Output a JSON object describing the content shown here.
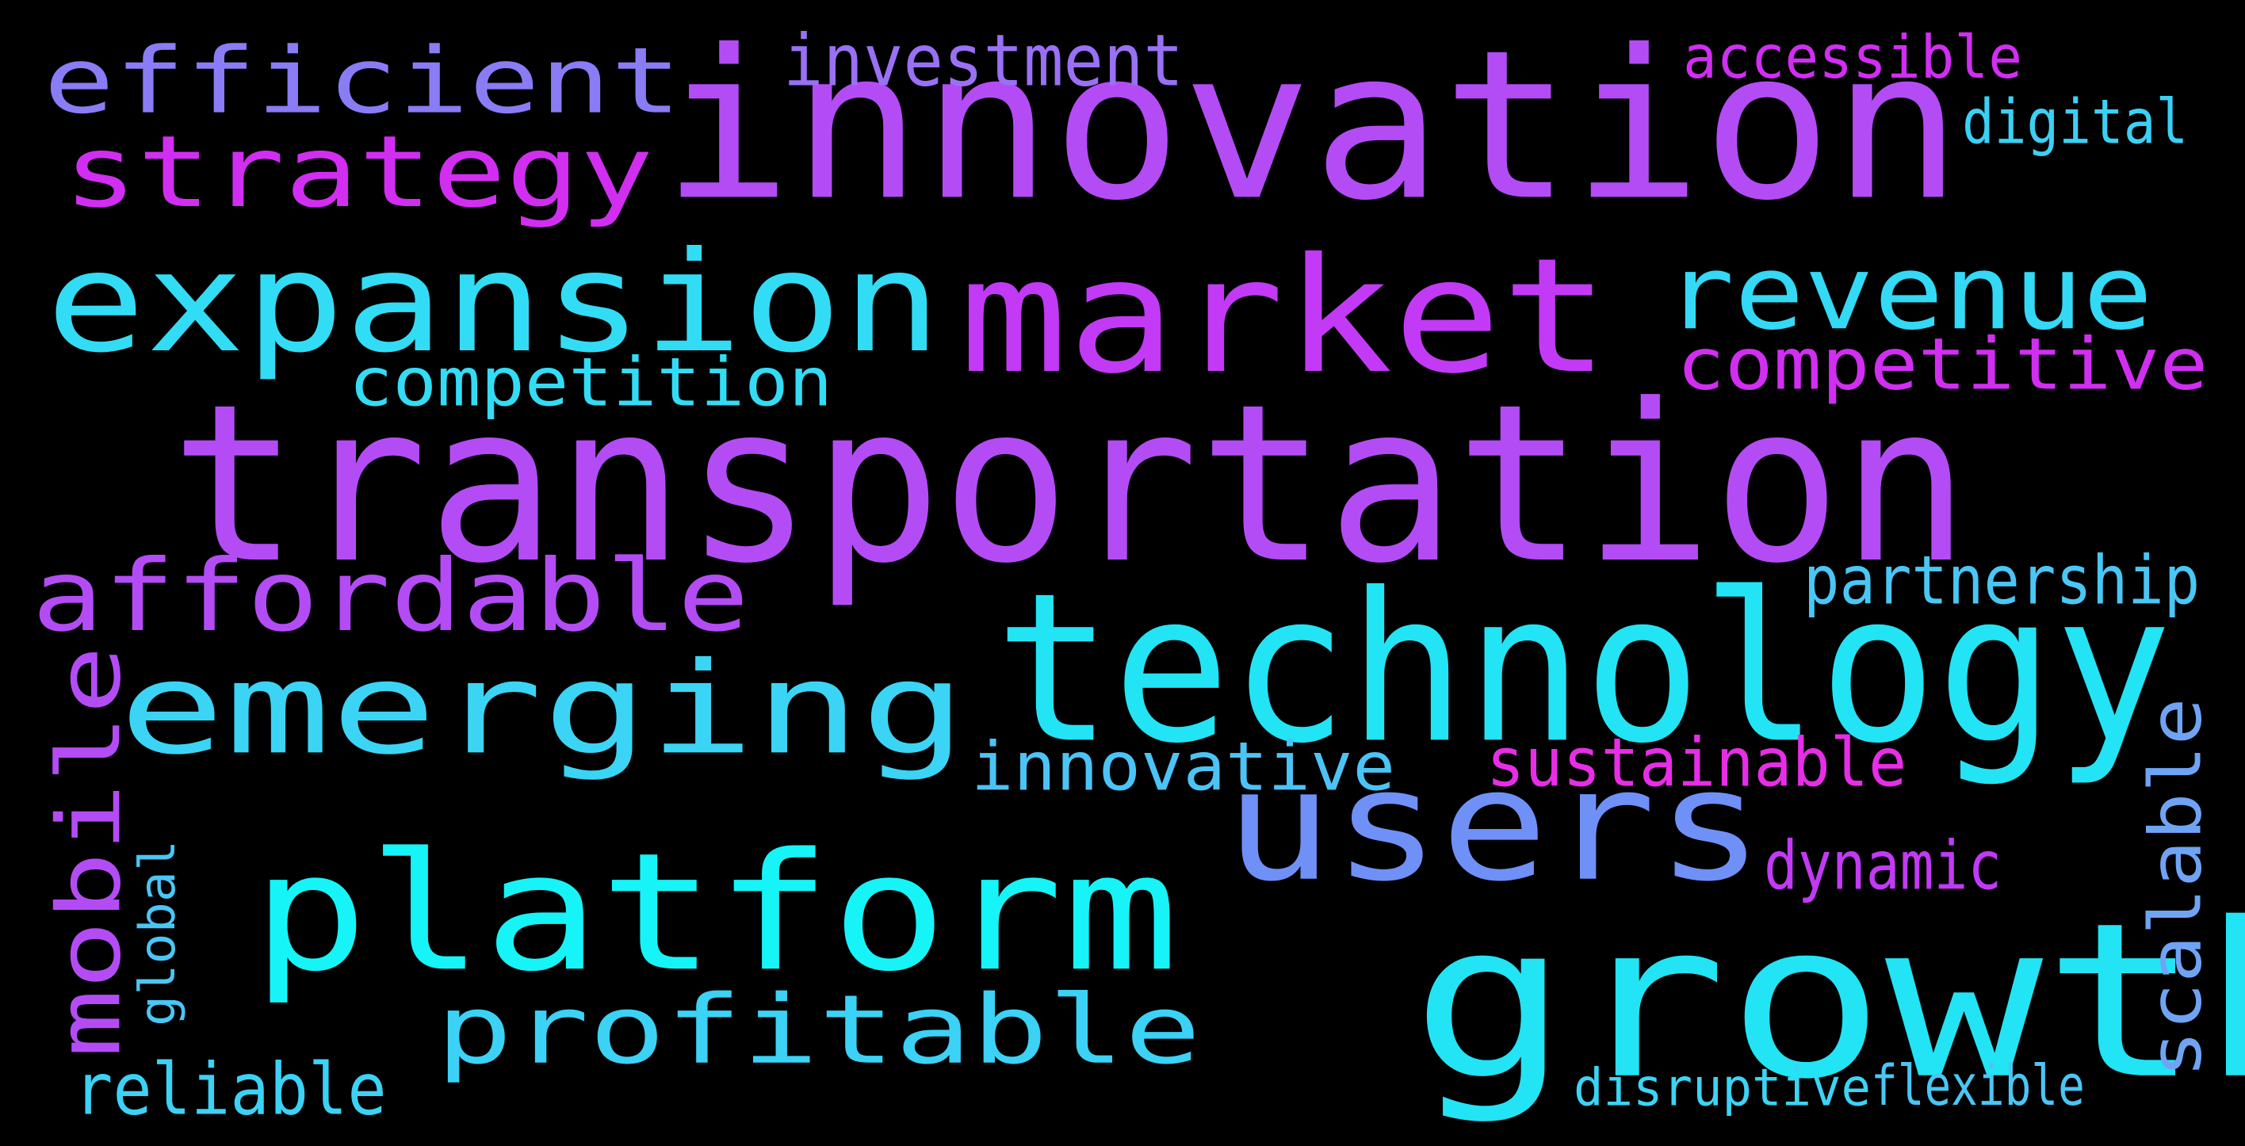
{
  "colors": {
    "background": "#000000",
    "cyan": "#22e4f5",
    "violet": "#b44cf5",
    "magenta": "#d12ef2",
    "periwinkle": "#7a8ef5",
    "pink": "#e62ee6"
  },
  "words": [
    {
      "text": "innovation",
      "color": "#b44cf5",
      "vertical": false
    },
    {
      "text": "transportation",
      "color": "#b44cf5",
      "vertical": false
    },
    {
      "text": "technology",
      "color": "#22e4f5",
      "vertical": false
    },
    {
      "text": "growth",
      "color": "#22e4f5",
      "vertical": false
    },
    {
      "text": "market",
      "color": "#c23af5",
      "vertical": false
    },
    {
      "text": "platform",
      "color": "#16f4f8",
      "vertical": false
    },
    {
      "text": "expansion",
      "color": "#33dcf5",
      "vertical": false
    },
    {
      "text": "users",
      "color": "#6f90f6",
      "vertical": false
    },
    {
      "text": "emerging",
      "color": "#3bd4f5",
      "vertical": false
    },
    {
      "text": "revenue",
      "color": "#33d9f5",
      "vertical": false
    },
    {
      "text": "affordable",
      "color": "#b44cf5",
      "vertical": false
    },
    {
      "text": "profitable",
      "color": "#3bd2f5",
      "vertical": false
    },
    {
      "text": "efficient",
      "color": "#8a7cf5",
      "vertical": false
    },
    {
      "text": "strategy",
      "color": "#d12ef2",
      "vertical": false
    },
    {
      "text": "mobile",
      "color": "#b44cf5",
      "vertical": true
    },
    {
      "text": "competitive",
      "color": "#d12ef2",
      "vertical": false
    },
    {
      "text": "competition",
      "color": "#33dcf5",
      "vertical": false
    },
    {
      "text": "innovative",
      "color": "#4cc3f5",
      "vertical": false
    },
    {
      "text": "sustainable",
      "color": "#e62ee6",
      "vertical": false
    },
    {
      "text": "scalable",
      "color": "#6fa4f5",
      "vertical": true
    },
    {
      "text": "partnership",
      "color": "#4ac6f5",
      "vertical": false
    },
    {
      "text": "investment",
      "color": "#9a70f5",
      "vertical": false
    },
    {
      "text": "accessible",
      "color": "#d12ef2",
      "vertical": false
    },
    {
      "text": "digital",
      "color": "#3bd0f5",
      "vertical": false
    },
    {
      "text": "dynamic",
      "color": "#c23af5",
      "vertical": false
    },
    {
      "text": "reliable",
      "color": "#3bd2f5",
      "vertical": false
    },
    {
      "text": "disruptive",
      "color": "#3bd4f5",
      "vertical": false
    },
    {
      "text": "flexible",
      "color": "#4ac6f5",
      "vertical": false
    },
    {
      "text": "global",
      "color": "#4ac6f5",
      "vertical": true
    }
  ]
}
